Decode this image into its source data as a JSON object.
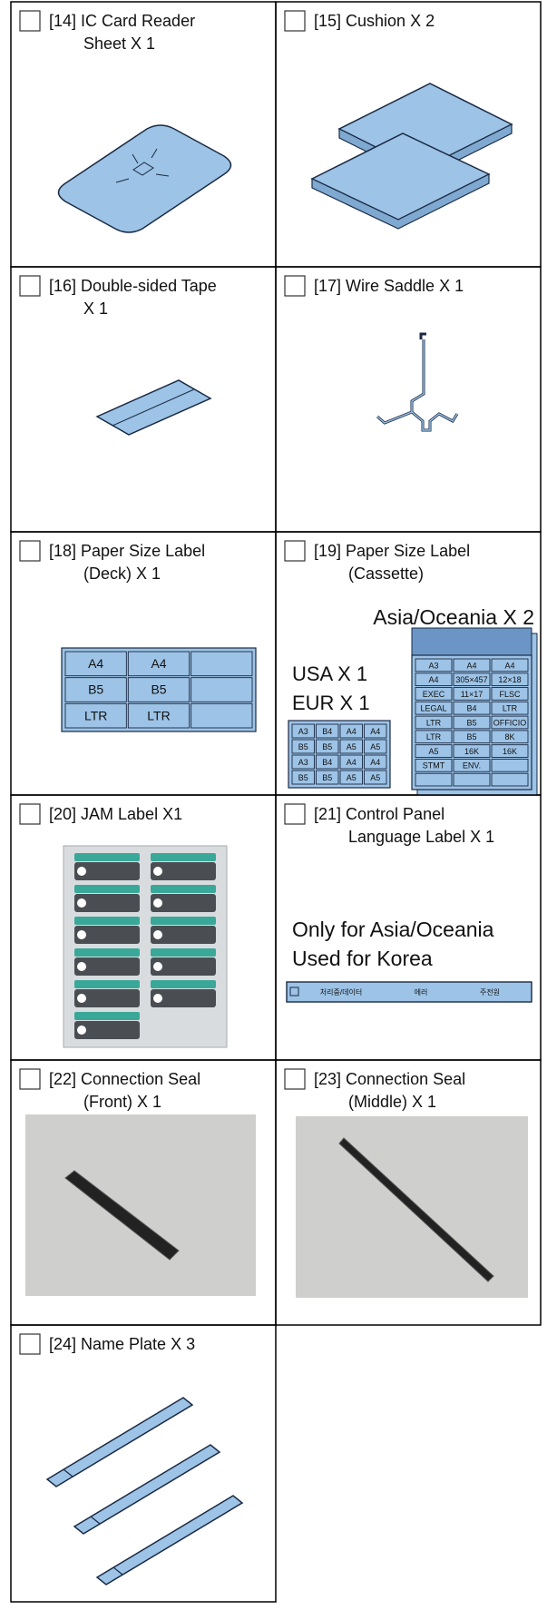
{
  "items": [
    {
      "title": [
        "[14] IC Card Reader",
        "Sheet X 1"
      ]
    },
    {
      "title": [
        "[15] Cushion X 2"
      ]
    },
    {
      "title": [
        "[16] Double-sided Tape",
        "X 1"
      ]
    },
    {
      "title": [
        "[17] Wire Saddle X 1"
      ]
    },
    {
      "title": [
        "[18] Paper Size Label",
        "(Deck) X 1"
      ],
      "label_cells": [
        "A4",
        "A4",
        "B5",
        "B5",
        "LTR",
        "LTR"
      ]
    },
    {
      "title": [
        "[19] Paper Size Label",
        "(Cassette)"
      ],
      "notes": [
        "Asia/Oceania X 2",
        "USA X 1",
        "EUR X 1"
      ],
      "small_label_cells": [
        "A3",
        "B4",
        "A4",
        "A4",
        "B5",
        "B5",
        "A5",
        "A5",
        "A3",
        "B4",
        "A4",
        "A4",
        "B5",
        "B5",
        "A5",
        "A5"
      ],
      "large_label_cells": [
        "A3",
        "A4",
        "A4",
        "A4",
        "305×457",
        "12×18",
        "EXEC",
        "11×17",
        "FLSC",
        "LEGAL",
        "B4",
        "LTR",
        "LTR",
        "B5",
        "OFFICIO",
        "LTR",
        "B5",
        "8K",
        "A5",
        "16K",
        "16K",
        "STMT",
        "ENV."
      ]
    },
    {
      "title": [
        "[20] JAM Label X1"
      ]
    },
    {
      "title": [
        "[21] Control Panel",
        "Language Label X 1"
      ],
      "notes": [
        "Only for Asia/Oceania",
        "Used for Korea"
      ],
      "strip_texts": [
        "처리중/데이터",
        "에러",
        "주전원"
      ]
    },
    {
      "title": [
        "[22] Connection Seal",
        "(Front) X 1"
      ]
    },
    {
      "title": [
        "[23] Connection Seal",
        "(Middle) X 1"
      ]
    },
    {
      "title": [
        "[24] Name Plate X 3"
      ]
    }
  ]
}
